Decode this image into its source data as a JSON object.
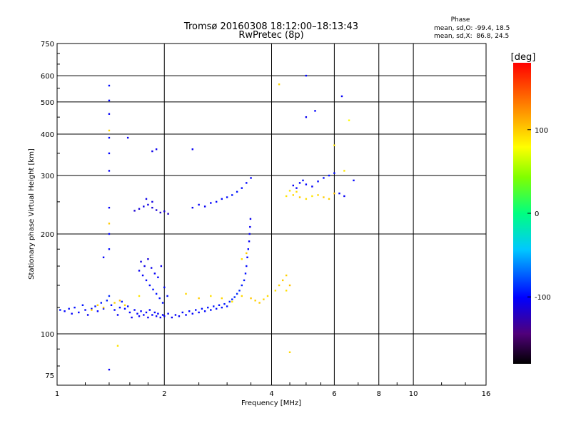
{
  "chart_data": {
    "type": "scatter",
    "title": "Tromsø 20160308 18:12:00–18:13:43",
    "subtitle": "RwPretec (8p)",
    "xlabel": "Frequency [MHz]",
    "ylabel": "Stationary phase Virtual Height [km]",
    "x_scale": "log",
    "y_scale": "log",
    "xlim": [
      1,
      16
    ],
    "ylim": [
      70,
      750
    ],
    "x_ticks": [
      1,
      2,
      4,
      6,
      8,
      10,
      16
    ],
    "y_ticks": [
      75,
      100,
      200,
      300,
      400,
      500,
      600,
      750
    ],
    "grid": true,
    "stats": {
      "heading": "Phase",
      "line_o": "mean, sd,O: -99.4, 18.5",
      "line_x": "mean, sd,X:  86.8, 24.5"
    },
    "colorbar": {
      "label": "[deg]",
      "ticks": [
        "100",
        "0",
        "-100"
      ],
      "tick_values": [
        100,
        0,
        -100
      ],
      "range": [
        -180,
        180
      ]
    },
    "series": [
      {
        "trace": "o-mode",
        "points": [
          [
            1.02,
            118,
            -95
          ],
          [
            1.05,
            117,
            -100
          ],
          [
            1.08,
            119,
            -98
          ],
          [
            1.1,
            115,
            -102
          ],
          [
            1.12,
            120,
            -97
          ],
          [
            1.15,
            116,
            -100
          ],
          [
            1.18,
            122,
            -95
          ],
          [
            1.2,
            118,
            -100
          ],
          [
            1.22,
            114,
            -104
          ],
          [
            1.25,
            119,
            -98
          ],
          [
            1.28,
            121,
            -96
          ],
          [
            1.3,
            117,
            -101
          ],
          [
            1.33,
            124,
            -95
          ],
          [
            1.35,
            119,
            -99
          ],
          [
            1.38,
            126,
            -93
          ],
          [
            1.4,
            130,
            -90
          ],
          [
            1.42,
            122,
            -97
          ],
          [
            1.45,
            118,
            -100
          ],
          [
            1.48,
            114,
            -103
          ],
          [
            1.5,
            120,
            -98
          ],
          [
            1.52,
            125,
            -94
          ],
          [
            1.55,
            119,
            -99
          ],
          [
            1.58,
            121,
            -97
          ],
          [
            1.6,
            116,
            -100
          ],
          [
            1.62,
            112,
            -105
          ],
          [
            1.65,
            118,
            -100
          ],
          [
            1.68,
            115,
            -102
          ],
          [
            1.7,
            113,
            -104
          ],
          [
            1.72,
            117,
            -100
          ],
          [
            1.75,
            114,
            -103
          ],
          [
            1.78,
            116,
            -101
          ],
          [
            1.8,
            112,
            -105
          ],
          [
            1.82,
            118,
            -99
          ],
          [
            1.85,
            114,
            -102
          ],
          [
            1.88,
            116,
            -100
          ],
          [
            1.9,
            113,
            -104
          ],
          [
            1.92,
            115,
            -101
          ],
          [
            1.95,
            112,
            -105
          ],
          [
            1.98,
            114,
            -103
          ],
          [
            2.0,
            113,
            -104
          ],
          [
            2.05,
            115,
            -102
          ],
          [
            2.1,
            112,
            -105
          ],
          [
            2.15,
            114,
            -103
          ],
          [
            2.2,
            113,
            -104
          ],
          [
            2.25,
            116,
            -100
          ],
          [
            2.3,
            114,
            -102
          ],
          [
            2.35,
            117,
            -99
          ],
          [
            2.4,
            115,
            -101
          ],
          [
            2.45,
            118,
            -98
          ],
          [
            2.5,
            116,
            -100
          ],
          [
            2.55,
            119,
            -97
          ],
          [
            2.6,
            117,
            -99
          ],
          [
            2.65,
            120,
            -96
          ],
          [
            2.7,
            118,
            -98
          ],
          [
            2.75,
            121,
            -95
          ],
          [
            2.8,
            119,
            -97
          ],
          [
            2.85,
            122,
            -95
          ],
          [
            2.9,
            120,
            -96
          ],
          [
            2.95,
            123,
            -94
          ],
          [
            3.0,
            121,
            -96
          ],
          [
            3.05,
            125,
            -93
          ],
          [
            3.1,
            127,
            -92
          ],
          [
            3.15,
            129,
            -90
          ],
          [
            3.2,
            132,
            -88
          ],
          [
            3.25,
            135,
            -90
          ],
          [
            3.3,
            140,
            -93
          ],
          [
            3.35,
            145,
            -95
          ],
          [
            3.38,
            152,
            -97
          ],
          [
            3.4,
            160,
            -99
          ],
          [
            3.42,
            170,
            -100
          ],
          [
            3.44,
            180,
            -101
          ],
          [
            3.46,
            190,
            -103
          ],
          [
            3.47,
            200,
            -104
          ],
          [
            3.48,
            210,
            -105
          ],
          [
            3.49,
            222,
            -106
          ],
          [
            1.72,
            165,
            -110
          ],
          [
            1.76,
            160,
            -108
          ],
          [
            1.8,
            168,
            -112
          ],
          [
            1.84,
            158,
            -106
          ],
          [
            1.88,
            152,
            -104
          ],
          [
            1.92,
            148,
            -102
          ],
          [
            1.78,
            145,
            -100
          ],
          [
            1.82,
            140,
            -98
          ],
          [
            1.86,
            136,
            -97
          ],
          [
            1.9,
            132,
            -96
          ],
          [
            1.94,
            128,
            -95
          ],
          [
            1.98,
            124,
            -97
          ],
          [
            1.74,
            150,
            -103
          ],
          [
            1.7,
            155,
            -105
          ],
          [
            2.0,
            138,
            -99
          ],
          [
            2.04,
            130,
            -97
          ],
          [
            1.96,
            160,
            -108
          ],
          [
            1.65,
            235,
            -115
          ],
          [
            1.7,
            238,
            -112
          ],
          [
            1.75,
            242,
            -108
          ],
          [
            1.8,
            245,
            -110
          ],
          [
            1.85,
            240,
            -113
          ],
          [
            1.9,
            236,
            -115
          ],
          [
            1.95,
            232,
            -117
          ],
          [
            2.0,
            234,
            -115
          ],
          [
            2.05,
            230,
            -118
          ],
          [
            1.78,
            255,
            -108
          ],
          [
            1.85,
            250,
            -110
          ],
          [
            2.4,
            240,
            -105
          ],
          [
            2.5,
            245,
            -103
          ],
          [
            2.6,
            242,
            -104
          ],
          [
            2.7,
            248,
            -102
          ],
          [
            2.8,
            250,
            -100
          ],
          [
            2.9,
            255,
            -98
          ],
          [
            3.0,
            258,
            -97
          ],
          [
            3.1,
            262,
            -96
          ],
          [
            3.2,
            268,
            -95
          ],
          [
            3.3,
            275,
            -98
          ],
          [
            3.4,
            285,
            -100
          ],
          [
            3.5,
            295,
            -102
          ],
          [
            1.4,
            560,
            -98
          ],
          [
            1.4,
            505,
            -100
          ],
          [
            1.4,
            460,
            -103
          ],
          [
            1.4,
            390,
            -99
          ],
          [
            1.4,
            350,
            -101
          ],
          [
            1.4,
            310,
            -104
          ],
          [
            1.4,
            240,
            -102
          ],
          [
            1.4,
            200,
            -100
          ],
          [
            1.4,
            180,
            -98
          ],
          [
            1.58,
            390,
            -105
          ],
          [
            1.85,
            355,
            -108
          ],
          [
            1.9,
            360,
            -106
          ],
          [
            2.4,
            360,
            -104
          ],
          [
            1.35,
            170,
            -102
          ],
          [
            1.4,
            78,
            -104
          ],
          [
            4.6,
            280,
            -105
          ],
          [
            4.7,
            275,
            -103
          ],
          [
            4.8,
            285,
            -100
          ],
          [
            4.9,
            290,
            -98
          ],
          [
            5.0,
            282,
            -101
          ],
          [
            5.2,
            278,
            -103
          ],
          [
            5.4,
            288,
            -99
          ],
          [
            5.6,
            295,
            -97
          ],
          [
            5.8,
            300,
            -96
          ],
          [
            6.0,
            305,
            -98
          ],
          [
            6.2,
            265,
            -102
          ],
          [
            6.4,
            260,
            -104
          ],
          [
            6.8,
            290,
            -100
          ],
          [
            6.3,
            520,
            -103
          ],
          [
            5.3,
            470,
            -101
          ],
          [
            5.0,
            600,
            -100
          ],
          [
            5.0,
            450,
            -105
          ]
        ]
      },
      {
        "trace": "x-mode",
        "points": [
          [
            1.25,
            118,
            100
          ],
          [
            1.3,
            122,
            96
          ],
          [
            1.35,
            120,
            102
          ],
          [
            1.45,
            124,
            98
          ],
          [
            1.5,
            126,
            104
          ],
          [
            1.55,
            122,
            95
          ],
          [
            1.7,
            130,
            90
          ],
          [
            2.3,
            132,
            95
          ],
          [
            2.5,
            128,
            100
          ],
          [
            2.7,
            130,
            92
          ],
          [
            2.9,
            128,
            96
          ],
          [
            3.1,
            125,
            88
          ],
          [
            3.3,
            130,
            95
          ],
          [
            3.5,
            128,
            102
          ],
          [
            3.6,
            126,
            98
          ],
          [
            3.7,
            124,
            100
          ],
          [
            3.8,
            127,
            96
          ],
          [
            3.9,
            130,
            94
          ],
          [
            4.1,
            135,
            90
          ],
          [
            4.2,
            140,
            95
          ],
          [
            4.3,
            145,
            100
          ],
          [
            4.4,
            150,
            98
          ],
          [
            4.5,
            140,
            104
          ],
          [
            4.4,
            135,
            92
          ],
          [
            3.4,
            175,
            100
          ],
          [
            3.3,
            168,
            92
          ],
          [
            4.4,
            260,
            90
          ],
          [
            4.6,
            262,
            95
          ],
          [
            4.8,
            258,
            100
          ],
          [
            5.0,
            255,
            92
          ],
          [
            5.2,
            260,
            88
          ],
          [
            5.4,
            262,
            96
          ],
          [
            5.6,
            258,
            100
          ],
          [
            5.8,
            255,
            98
          ],
          [
            6.0,
            265,
            104
          ],
          [
            4.5,
            270,
            90
          ],
          [
            4.7,
            268,
            94
          ],
          [
            1.4,
            410,
            95
          ],
          [
            1.4,
            215,
            100
          ],
          [
            1.48,
            92,
            90
          ],
          [
            4.2,
            565,
            95
          ],
          [
            6.0,
            370,
            90
          ],
          [
            6.4,
            310,
            88
          ],
          [
            6.6,
            440,
            80
          ],
          [
            4.5,
            88,
            95
          ]
        ]
      }
    ]
  }
}
